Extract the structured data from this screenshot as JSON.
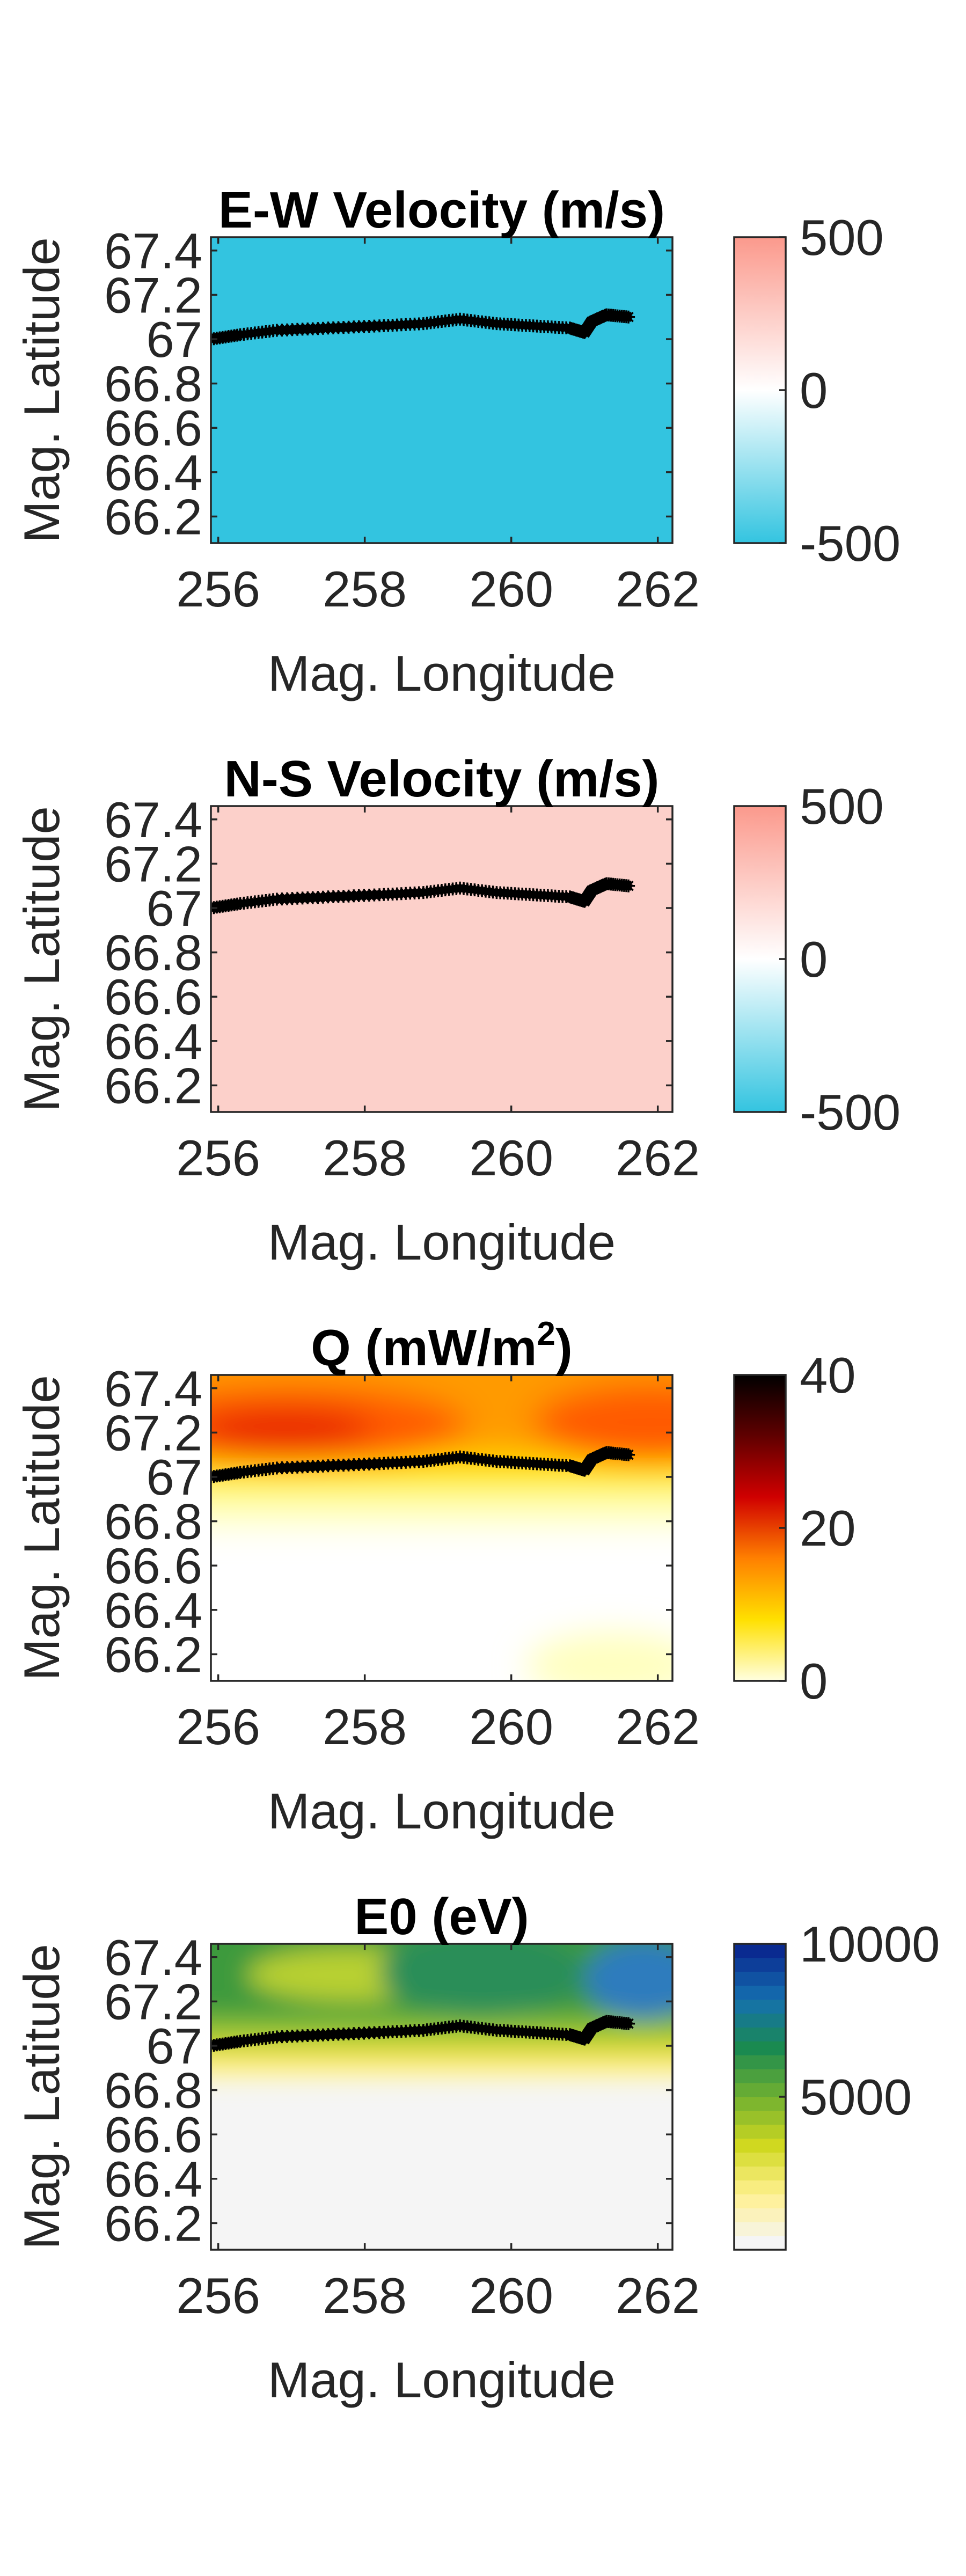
{
  "chart_data": [
    {
      "type": "heatmap",
      "title": "E-W Velocity (m/s)",
      "xlabel": "Mag. Longitude",
      "ylabel": "Mag. Latitude",
      "xlim": [
        255.9,
        262.2
      ],
      "ylim": [
        66.08,
        67.46
      ],
      "x_ticks": [
        "256",
        "258",
        "260",
        "262"
      ],
      "y_ticks": [
        "66.2",
        "66.4",
        "66.6",
        "66.8",
        "67",
        "67.2",
        "67.4"
      ],
      "colorbar": {
        "ticks": [
          "-500",
          "0",
          "500"
        ],
        "range": [
          -500,
          500
        ],
        "colors": [
          "#33c4e0",
          "#ffffff",
          "#fb998c"
        ]
      },
      "field_description": "uniform value near -500 across the whole map",
      "fill_color": "#33c4e0",
      "track": {
        "x": [
          255.9,
          256.3,
          256.8,
          257.5,
          258.2,
          258.8,
          259.3,
          259.8,
          260.3,
          260.8,
          261.0,
          261.1,
          261.3,
          261.6
        ],
        "y": [
          67.0,
          67.02,
          67.04,
          67.05,
          67.06,
          67.07,
          67.09,
          67.07,
          67.06,
          67.05,
          67.03,
          67.08,
          67.11,
          67.1
        ]
      }
    },
    {
      "type": "heatmap",
      "title": "N-S Velocity (m/s)",
      "xlabel": "Mag. Longitude",
      "ylabel": "Mag. Latitude",
      "xlim": [
        255.9,
        262.2
      ],
      "ylim": [
        66.08,
        67.46
      ],
      "x_ticks": [
        "256",
        "258",
        "260",
        "262"
      ],
      "y_ticks": [
        "66.2",
        "66.4",
        "66.6",
        "66.8",
        "67",
        "67.2",
        "67.4"
      ],
      "colorbar": {
        "ticks": [
          "-500",
          "0",
          "500"
        ],
        "range": [
          -500,
          500
        ],
        "colors": [
          "#33c4e0",
          "#ffffff",
          "#fb998c"
        ]
      },
      "field_description": "nearly uniform positive value around 200",
      "fill_color": "#fcd0ca",
      "track": {
        "x": [
          255.9,
          256.3,
          256.8,
          257.5,
          258.2,
          258.8,
          259.3,
          259.8,
          260.3,
          260.8,
          261.0,
          261.1,
          261.3,
          261.6
        ],
        "y": [
          67.0,
          67.02,
          67.04,
          67.05,
          67.06,
          67.07,
          67.09,
          67.07,
          67.06,
          67.05,
          67.03,
          67.08,
          67.11,
          67.1
        ]
      }
    },
    {
      "type": "heatmap",
      "title": "Q (mW/m",
      "title_sup": "2",
      "title_end": ")",
      "xlabel": "Mag. Longitude",
      "ylabel": "Mag. Latitude",
      "xlim": [
        255.9,
        262.2
      ],
      "ylim": [
        66.08,
        67.46
      ],
      "x_ticks": [
        "256",
        "258",
        "260",
        "262"
      ],
      "y_ticks": [
        "66.2",
        "66.4",
        "66.6",
        "66.8",
        "67",
        "67.2",
        "67.4"
      ],
      "colorbar": {
        "ticks": [
          "0",
          "20",
          "40"
        ],
        "range": [
          0,
          40
        ],
        "colors": [
          "#ffffe0",
          "#ffe000",
          "#ff8000",
          "#d00000",
          "#600000",
          "#000000"
        ]
      },
      "field_description": "peak about 18 near lat 67.2 lon 256.8, decreasing to 0 south of lat 66.8",
      "field_colors": [
        "#e82800",
        "#ff5a00",
        "#ff9a00",
        "#ffcc00",
        "#fff200",
        "#ffffc0"
      ],
      "track": {
        "x": [
          255.9,
          256.3,
          256.8,
          257.5,
          258.2,
          258.8,
          259.3,
          259.8,
          260.3,
          260.8,
          261.0,
          261.1,
          261.3,
          261.6
        ],
        "y": [
          67.0,
          67.02,
          67.04,
          67.05,
          67.06,
          67.07,
          67.09,
          67.07,
          67.06,
          67.05,
          67.03,
          67.08,
          67.11,
          67.1
        ]
      }
    },
    {
      "type": "heatmap",
      "title": "E0 (eV)",
      "xlabel": "Mag. Longitude",
      "ylabel": "Mag. Latitude",
      "xlim": [
        255.9,
        262.2
      ],
      "ylim": [
        66.08,
        67.46
      ],
      "x_ticks": [
        "256",
        "258",
        "260",
        "262"
      ],
      "y_ticks": [
        "66.2",
        "66.4",
        "66.6",
        "66.8",
        "67",
        "67.2",
        "67.4"
      ],
      "colorbar": {
        "ticks": [
          "5000",
          "10000"
        ],
        "range": [
          0,
          10000
        ],
        "colors": [
          "#f5f5f5",
          "#fff090",
          "#d0d820",
          "#70b030",
          "#1a8a50",
          "#1570b0",
          "#0a2a90"
        ]
      },
      "field_description": "green values 4000-6000 north of 66.9 with blue patch near lon 261.5 lat 67.3; near zero south of 66.8",
      "field_colors": [
        "#f5f5f5",
        "#fff4a0",
        "#f0e040",
        "#b8d030",
        "#7cb838",
        "#3d9a3c",
        "#2b8e58",
        "#2d7bbd"
      ],
      "track": {
        "x": [
          255.9,
          256.3,
          256.8,
          257.5,
          258.2,
          258.8,
          259.3,
          259.8,
          260.3,
          260.8,
          261.0,
          261.1,
          261.3,
          261.6
        ],
        "y": [
          67.0,
          67.02,
          67.04,
          67.05,
          67.06,
          67.07,
          67.09,
          67.07,
          67.06,
          67.05,
          67.03,
          67.08,
          67.11,
          67.1
        ]
      }
    }
  ]
}
